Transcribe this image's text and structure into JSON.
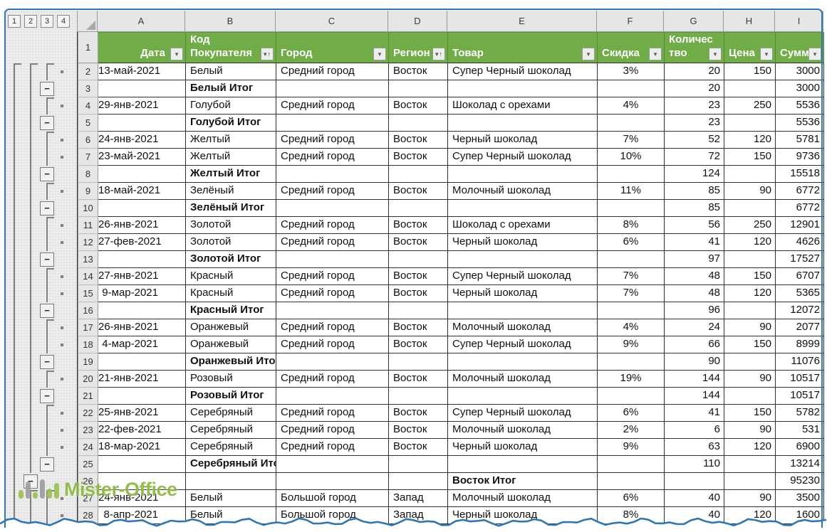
{
  "colors": {
    "header_green": "#71AD47",
    "frame_blue": "#2E77B5",
    "watermark_green": "#8CB83F"
  },
  "outline": {
    "level_buttons": [
      "1",
      "2",
      "3",
      "4"
    ],
    "collapse_glyph": "−"
  },
  "columns": {
    "letters": [
      "A",
      "B",
      "C",
      "D",
      "E",
      "F",
      "G",
      "H",
      "I"
    ]
  },
  "header": {
    "row_number": "1",
    "cells": [
      {
        "text": "Дата",
        "sorted": false,
        "align": "right"
      },
      {
        "text": "Код\nПокупателя",
        "sorted": true,
        "align": "left"
      },
      {
        "text": "Город",
        "sorted": false,
        "align": "left"
      },
      {
        "text": "Регион",
        "sorted": true,
        "align": "left"
      },
      {
        "text": "Товар",
        "sorted": false,
        "align": "left"
      },
      {
        "text": "Скидка",
        "sorted": false,
        "align": "left"
      },
      {
        "text": "Количес\nтво",
        "sorted": false,
        "align": "left"
      },
      {
        "text": "Цена",
        "sorted": false,
        "align": "left"
      },
      {
        "text": "Сумма",
        "sorted": false,
        "align": "left"
      }
    ]
  },
  "rows": [
    {
      "n": "2",
      "type": "detail",
      "date": "13-май-2021",
      "customer": "Белый",
      "city": "Средний город",
      "region": "Восток",
      "product": "Супер Черный шоколад",
      "discount": "3%",
      "qty": "20",
      "price": "150",
      "sum": "3000",
      "outline": {
        "l1": "start",
        "l2": "start",
        "l3": "start",
        "dot": true
      }
    },
    {
      "n": "3",
      "type": "subtotal",
      "label": "Белый Итог",
      "qty": "20",
      "sum": "3000",
      "outline": {
        "l1": "line",
        "l2": "line",
        "l3": "minus",
        "dot": false
      }
    },
    {
      "n": "4",
      "type": "detail",
      "date": "29-янв-2021",
      "customer": "Голубой",
      "city": "Средний город",
      "region": "Восток",
      "product": "Шоколад с орехами",
      "discount": "4%",
      "qty": "23",
      "price": "250",
      "sum": "5536",
      "outline": {
        "l1": "line",
        "l2": "line",
        "l3": "start",
        "dot": true
      }
    },
    {
      "n": "5",
      "type": "subtotal",
      "label": "Голубой Итог",
      "qty": "23",
      "sum": "5536",
      "outline": {
        "l1": "line",
        "l2": "line",
        "l3": "minus",
        "dot": false
      }
    },
    {
      "n": "6",
      "type": "detail",
      "date": "24-янв-2021",
      "customer": "Желтый",
      "city": "Средний город",
      "region": "Восток",
      "product": "Черный шоколад",
      "discount": "7%",
      "qty": "52",
      "price": "120",
      "sum": "5781",
      "outline": {
        "l1": "line",
        "l2": "line",
        "l3": "start",
        "dot": true
      }
    },
    {
      "n": "7",
      "type": "detail",
      "date": "23-май-2021",
      "customer": "Желтый",
      "city": "Средний город",
      "region": "Восток",
      "product": "Супер Черный шоколад",
      "discount": "10%",
      "qty": "72",
      "price": "150",
      "sum": "9736",
      "outline": {
        "l1": "line",
        "l2": "line",
        "l3": "line",
        "dot": true
      }
    },
    {
      "n": "8",
      "type": "subtotal",
      "label": "Желтый Итог",
      "qty": "124",
      "sum": "15518",
      "outline": {
        "l1": "line",
        "l2": "line",
        "l3": "minus",
        "dot": false
      }
    },
    {
      "n": "9",
      "type": "detail",
      "date": "18-май-2021",
      "customer": "Зелёный",
      "city": "Средний город",
      "region": "Восток",
      "product": "Молочный шоколад",
      "discount": "11%",
      "qty": "85",
      "price": "90",
      "sum": "6772",
      "outline": {
        "l1": "line",
        "l2": "line",
        "l3": "start",
        "dot": true
      }
    },
    {
      "n": "10",
      "type": "subtotal",
      "label": "Зелёный Итог",
      "qty": "85",
      "sum": "6772",
      "outline": {
        "l1": "line",
        "l2": "line",
        "l3": "minus",
        "dot": false
      }
    },
    {
      "n": "11",
      "type": "detail",
      "date": "26-янв-2021",
      "customer": "Золотой",
      "city": "Средний город",
      "region": "Восток",
      "product": "Шоколад с орехами",
      "discount": "8%",
      "qty": "56",
      "price": "250",
      "sum": "12901",
      "outline": {
        "l1": "line",
        "l2": "line",
        "l3": "start",
        "dot": true
      }
    },
    {
      "n": "12",
      "type": "detail",
      "date": "27-фев-2021",
      "customer": "Золотой",
      "city": "Средний город",
      "region": "Восток",
      "product": "Черный шоколад",
      "discount": "6%",
      "qty": "41",
      "price": "120",
      "sum": "4626",
      "outline": {
        "l1": "line",
        "l2": "line",
        "l3": "line",
        "dot": true
      }
    },
    {
      "n": "13",
      "type": "subtotal",
      "label": "Золотой Итог",
      "qty": "97",
      "sum": "17527",
      "outline": {
        "l1": "line",
        "l2": "line",
        "l3": "minus",
        "dot": false
      }
    },
    {
      "n": "14",
      "type": "detail",
      "date": "27-янв-2021",
      "customer": "Красный",
      "city": "Средний город",
      "region": "Восток",
      "product": "Супер Черный шоколад",
      "discount": "7%",
      "qty": "48",
      "price": "150",
      "sum": "6707",
      "outline": {
        "l1": "line",
        "l2": "line",
        "l3": "start",
        "dot": true
      }
    },
    {
      "n": "15",
      "type": "detail",
      "date": "9-мар-2021",
      "customer": "Красный",
      "city": "Средний город",
      "region": "Восток",
      "product": "Черный шоколад",
      "discount": "7%",
      "qty": "48",
      "price": "120",
      "sum": "5365",
      "outline": {
        "l1": "line",
        "l2": "line",
        "l3": "line",
        "dot": true
      }
    },
    {
      "n": "16",
      "type": "subtotal",
      "label": "Красный Итог",
      "qty": "96",
      "sum": "12072",
      "outline": {
        "l1": "line",
        "l2": "line",
        "l3": "minus",
        "dot": false
      }
    },
    {
      "n": "17",
      "type": "detail",
      "date": "26-янв-2021",
      "customer": "Оранжевый",
      "city": "Средний город",
      "region": "Восток",
      "product": "Молочный шоколад",
      "discount": "4%",
      "qty": "24",
      "price": "90",
      "sum": "2077",
      "outline": {
        "l1": "line",
        "l2": "line",
        "l3": "start",
        "dot": true
      }
    },
    {
      "n": "18",
      "type": "detail",
      "date": "4-мар-2021",
      "customer": "Оранжевый",
      "city": "Средний город",
      "region": "Восток",
      "product": "Супер Черный шоколад",
      "discount": "9%",
      "qty": "66",
      "price": "150",
      "sum": "8999",
      "outline": {
        "l1": "line",
        "l2": "line",
        "l3": "line",
        "dot": true
      }
    },
    {
      "n": "19",
      "type": "subtotal",
      "label": "Оранжевый Итог",
      "qty": "90",
      "sum": "11076",
      "outline": {
        "l1": "line",
        "l2": "line",
        "l3": "minus",
        "dot": false
      }
    },
    {
      "n": "20",
      "type": "detail",
      "date": "21-янв-2021",
      "customer": "Розовый",
      "city": "Средний город",
      "region": "Восток",
      "product": "Молочный шоколад",
      "discount": "19%",
      "qty": "144",
      "price": "90",
      "sum": "10517",
      "outline": {
        "l1": "line",
        "l2": "line",
        "l3": "start",
        "dot": true
      }
    },
    {
      "n": "21",
      "type": "subtotal",
      "label": "Розовый Итог",
      "qty": "144",
      "sum": "10517",
      "outline": {
        "l1": "line",
        "l2": "line",
        "l3": "minus",
        "dot": false
      }
    },
    {
      "n": "22",
      "type": "detail",
      "date": "25-янв-2021",
      "customer": "Серебряный",
      "city": "Средний город",
      "region": "Восток",
      "product": "Супер Черный шоколад",
      "discount": "6%",
      "qty": "41",
      "price": "150",
      "sum": "5782",
      "outline": {
        "l1": "line",
        "l2": "line",
        "l3": "start",
        "dot": true
      }
    },
    {
      "n": "23",
      "type": "detail",
      "date": "22-фев-2021",
      "customer": "Серебряный",
      "city": "Средний город",
      "region": "Восток",
      "product": "Молочный шоколад",
      "discount": "2%",
      "qty": "6",
      "price": "90",
      "sum": "531",
      "outline": {
        "l1": "line",
        "l2": "line",
        "l3": "line",
        "dot": true
      }
    },
    {
      "n": "24",
      "type": "detail",
      "date": "18-мар-2021",
      "customer": "Серебряный",
      "city": "Средний город",
      "region": "Восток",
      "product": "Черный шоколад",
      "discount": "9%",
      "qty": "63",
      "price": "120",
      "sum": "6900",
      "outline": {
        "l1": "line",
        "l2": "line",
        "l3": "line",
        "dot": true
      }
    },
    {
      "n": "25",
      "type": "subtotal",
      "label": "Серебряный Итог",
      "qty": "110",
      "sum": "13214",
      "outline": {
        "l1": "line",
        "l2": "line",
        "l3": "minus",
        "dot": false
      }
    },
    {
      "n": "26",
      "type": "region_total",
      "label": "Восток Итог",
      "sum": "95230",
      "outline": {
        "l1": "line",
        "l2": "minus",
        "l3": "none",
        "dot": false
      }
    },
    {
      "n": "27",
      "type": "detail",
      "date": "24-янв-2021",
      "customer": "Белый",
      "city": "Большой город",
      "region": "Запад",
      "product": "Молочный шоколад",
      "discount": "6%",
      "qty": "40",
      "price": "90",
      "sum": "3500",
      "outline": {
        "l1": "line",
        "l2": "start",
        "l3": "start",
        "dot": true
      }
    },
    {
      "n": "28",
      "type": "detail",
      "date": "8-апр-2021",
      "customer": "Белый",
      "city": "Большой город",
      "region": "Запад",
      "product": "Черный шоколад",
      "discount": "8%",
      "qty": "40",
      "price": "120",
      "sum": "1600",
      "outline": {
        "l1": "line",
        "l2": "line",
        "l3": "line",
        "dot": true
      }
    }
  ],
  "watermark": {
    "text": "Mister-Office"
  }
}
